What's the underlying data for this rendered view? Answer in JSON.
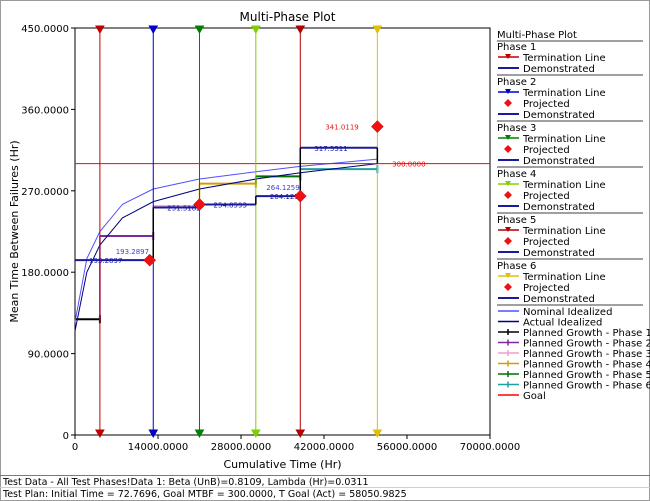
{
  "chart_data": {
    "type": "line",
    "title": "Multi-Phase Plot",
    "xlabel": "Cumulative Time (Hr)",
    "ylabel": "Mean Time Between Failures (Hr)",
    "xlim": [
      0,
      70000
    ],
    "ylim": [
      0,
      450
    ],
    "x_ticks": [
      "0",
      "14000.0000",
      "28000.0000",
      "42000.0000",
      "56000.0000",
      "70000.0000"
    ],
    "y_ticks": [
      "0",
      "90.0000",
      "180.0000",
      "270.0000",
      "360.0000",
      "450.0000"
    ],
    "grid": false,
    "legend_position": "right",
    "goal": {
      "value": 300,
      "label": "300.0000",
      "color": "#ff0000"
    },
    "phases": [
      {
        "name": "Phase 1",
        "color": "#c00000",
        "termination": 4200,
        "demonstrated": {
          "x0": 0,
          "x1": 13200,
          "y": 193.2897,
          "label": "193.2897"
        },
        "projected": null,
        "planned": {
          "x0": 0,
          "x1": 4200,
          "y": 128,
          "color": "#000000"
        }
      },
      {
        "name": "Phase 2",
        "color": "#0000c8",
        "termination": 13200,
        "demonstrated": {
          "x0": 13200,
          "x1": 21000,
          "y": 251.5182,
          "label": "251.5182"
        },
        "projected": {
          "x": 12600,
          "y": 193.2897,
          "label": "193.2897"
        },
        "planned": {
          "x0": 4200,
          "x1": 13200,
          "y": 220,
          "color": "#7b2aa0"
        }
      },
      {
        "name": "Phase 3",
        "color": "#008000",
        "termination": 21000,
        "demonstrated": {
          "x0": 21000,
          "x1": 30500,
          "y": 254.8593,
          "label": "254.8593"
        },
        "projected": {
          "x": 21000,
          "y": 254.8593,
          "label": ""
        },
        "planned": {
          "x0": 13200,
          "x1": 21000,
          "y": 253,
          "color": "#f0a0c8"
        }
      },
      {
        "name": "Phase 4",
        "color": "#80d000",
        "termination": 30500,
        "demonstrated": {
          "x0": 30500,
          "x1": 38000,
          "y": 264.1259,
          "label": "264.1259"
        },
        "projected": null,
        "planned": {
          "x0": 21000,
          "x1": 30500,
          "y": 278,
          "color": "#d0a000"
        }
      },
      {
        "name": "Phase 5",
        "color": "#b00000",
        "termination": 38000,
        "demonstrated": {
          "x0": 38000,
          "x1": 51000,
          "y": 317.5511,
          "label": "317.5511"
        },
        "projected": {
          "x": 38000,
          "y": 264.1259,
          "label": "264.1259"
        },
        "planned": {
          "x0": 30500,
          "x1": 38000,
          "y": 286,
          "color": "#007000"
        }
      },
      {
        "name": "Phase 6",
        "color": "#e0c000",
        "termination": 51000,
        "demonstrated": null,
        "projected": {
          "x": 51000,
          "y": 341.0119,
          "label": "341.0119"
        },
        "planned": {
          "x0": 38000,
          "x1": 51000,
          "y": 294,
          "color": "#20a0a0"
        }
      }
    ],
    "nominal_idealized": {
      "name": "Nominal Idealized",
      "color": "#5050ff",
      "x": [
        0,
        2000,
        4200,
        8000,
        13200,
        21000,
        30500,
        38000,
        51000
      ],
      "y": [
        125,
        195,
        225,
        255,
        272,
        283,
        291,
        297,
        305
      ]
    },
    "actual_idealized": {
      "name": "Actual Idealized",
      "color": "#000080",
      "x": [
        0,
        2000,
        4200,
        8000,
        13200,
        21000,
        30500,
        38000,
        51000
      ],
      "y": [
        115,
        180,
        210,
        240,
        258,
        272,
        283,
        290,
        300
      ]
    }
  },
  "legend": {
    "title": "Multi-Phase Plot",
    "groups": [
      {
        "title": "Phase 1",
        "entries": [
          "Termination Line",
          "Demonstrated"
        ]
      },
      {
        "title": "Phase 2",
        "entries": [
          "Termination Line",
          "Projected",
          "Demonstrated"
        ]
      },
      {
        "title": "Phase 3",
        "entries": [
          "Termination Line",
          "Projected",
          "Demonstrated"
        ]
      },
      {
        "title": "Phase 4",
        "entries": [
          "Termination Line",
          "Projected",
          "Demonstrated"
        ]
      },
      {
        "title": "Phase 5",
        "entries": [
          "Termination Line",
          "Projected",
          "Demonstrated"
        ]
      },
      {
        "title": "Phase 6",
        "entries": [
          "Termination Line",
          "Projected",
          "Demonstrated"
        ]
      }
    ],
    "lines": [
      {
        "label": "Nominal Idealized",
        "color": "#5050ff",
        "marker": "none"
      },
      {
        "label": "Actual Idealized",
        "color": "#000080",
        "marker": "none"
      },
      {
        "label": "Planned Growth - Phase 1",
        "color": "#000000",
        "marker": "cross"
      },
      {
        "label": "Planned Growth - Phase 2",
        "color": "#7b2aa0",
        "marker": "cross"
      },
      {
        "label": "Planned Growth - Phase 3",
        "color": "#f0a0c8",
        "marker": "cross"
      },
      {
        "label": "Planned Growth - Phase 4",
        "color": "#d0a000",
        "marker": "cross"
      },
      {
        "label": "Planned Growth - Phase 5",
        "color": "#007000",
        "marker": "cross"
      },
      {
        "label": "Planned Growth - Phase 6",
        "color": "#20a0a0",
        "marker": "cross"
      },
      {
        "label": "Goal",
        "color": "#ff0000",
        "marker": "none"
      }
    ]
  },
  "footer": {
    "line1": "Test Data - All Test Phases!Data 1: Beta (UnB)=0.8109, Lambda (Hr)=0.0311",
    "line2": "Test Plan: Initial Time = 72.7696, Goal MTBF = 300.0000, T Goal (Act) = 58050.9825"
  }
}
